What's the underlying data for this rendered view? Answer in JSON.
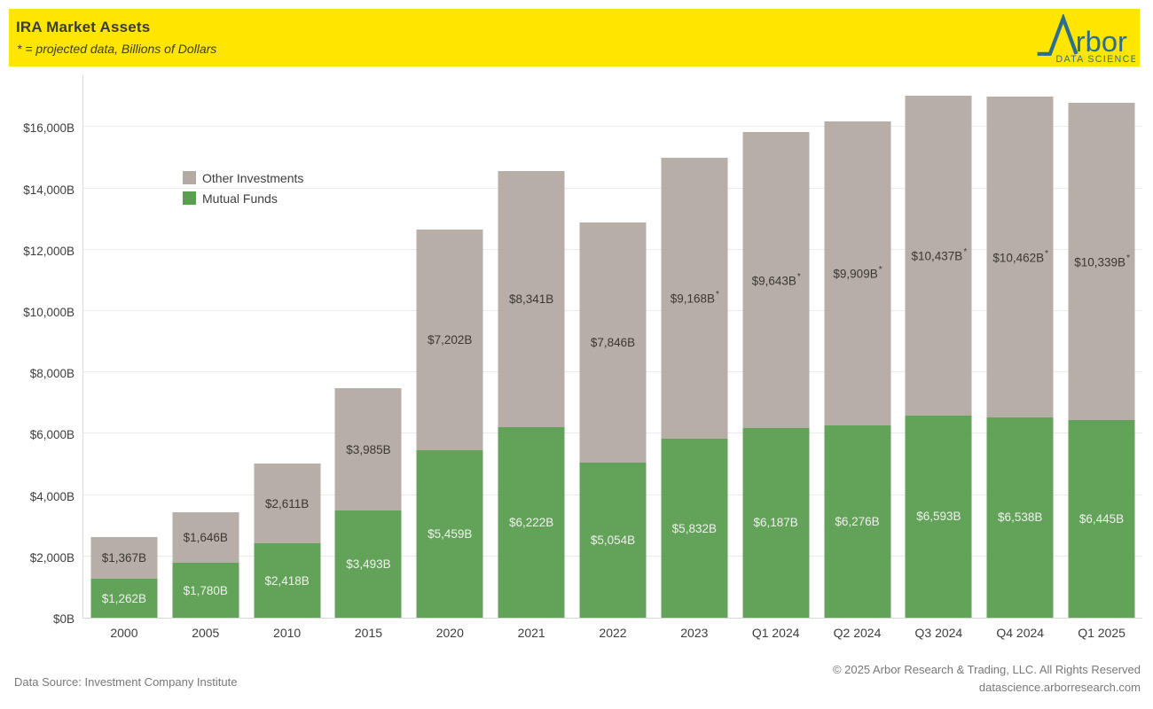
{
  "header": {
    "title": "IRA Market Assets",
    "subtitle": "* = projected data, Billions of Dollars",
    "banner_color": "#FFE600"
  },
  "logo": {
    "brand": "rbor",
    "brand_full": "Arbor",
    "tagline": "DATA SCIENCE",
    "color": "#2C6D90"
  },
  "legend": [
    {
      "label": "Other Investments",
      "color": "#B3AAA3"
    },
    {
      "label": "Mutual Funds",
      "color": "#5A9E50"
    }
  ],
  "chart_data": {
    "type": "bar",
    "stacked": true,
    "title": "IRA Market Assets",
    "subtitle": "* = projected data, Billions of Dollars",
    "xlabel": "",
    "ylabel": "Billions of Dollars",
    "ylim": [
      0,
      17700
    ],
    "grid": true,
    "legend_position": "upper-left-inside",
    "projected_note": "* = projected data",
    "categories": [
      "2000",
      "2005",
      "2010",
      "2015",
      "2020",
      "2021",
      "2022",
      "2023",
      "Q1 2024",
      "Q2 2024",
      "Q3 2024",
      "Q4 2024",
      "Q1 2025"
    ],
    "series": [
      {
        "name": "Mutual Funds",
        "color": "#5A9E50",
        "values": [
          1262,
          1780,
          2418,
          3493,
          5459,
          6222,
          5054,
          5832,
          6187,
          6276,
          6593,
          6538,
          6445
        ],
        "labels": [
          "$1,262B",
          "$1,780B",
          "$2,418B",
          "$3,493B",
          "$5,459B",
          "$6,222B",
          "$5,054B",
          "$5,832B",
          "$6,187B",
          "$6,276B",
          "$6,593B",
          "$6,538B",
          "$6,445B"
        ],
        "projected": [
          false,
          false,
          false,
          false,
          false,
          false,
          false,
          false,
          false,
          false,
          false,
          false,
          false
        ]
      },
      {
        "name": "Other Investments",
        "color": "#B3AAA3",
        "values": [
          1367,
          1646,
          2611,
          3985,
          7202,
          8341,
          7846,
          9168,
          9643,
          9909,
          10437,
          10462,
          10339
        ],
        "labels": [
          "$1,367B",
          "$1,646B",
          "$2,611B",
          "$3,985B",
          "$7,202B",
          "$8,341B",
          "$7,846B",
          "$9,168B",
          "$9,643B",
          "$9,909B",
          "$10,437B",
          "$10,462B",
          "$10,339B"
        ],
        "projected": [
          false,
          false,
          false,
          false,
          false,
          false,
          false,
          true,
          true,
          true,
          true,
          true,
          true
        ]
      }
    ],
    "y_ticks": [
      {
        "value": 0,
        "label": "$0B"
      },
      {
        "value": 2000,
        "label": "$2,000B"
      },
      {
        "value": 4000,
        "label": "$4,000B"
      },
      {
        "value": 6000,
        "label": "$6,000B"
      },
      {
        "value": 8000,
        "label": "$8,000B"
      },
      {
        "value": 10000,
        "label": "$10,000B"
      },
      {
        "value": 12000,
        "label": "$12,000B"
      },
      {
        "value": 14000,
        "label": "$14,000B"
      },
      {
        "value": 16000,
        "label": "$16,000B"
      }
    ]
  },
  "footer": {
    "source": "Data Source: Investment Company Institute",
    "copyright": "© 2025 Arbor Research & Trading, LLC. All Rights Reserved",
    "website": "datascience.arborresearch.com"
  }
}
